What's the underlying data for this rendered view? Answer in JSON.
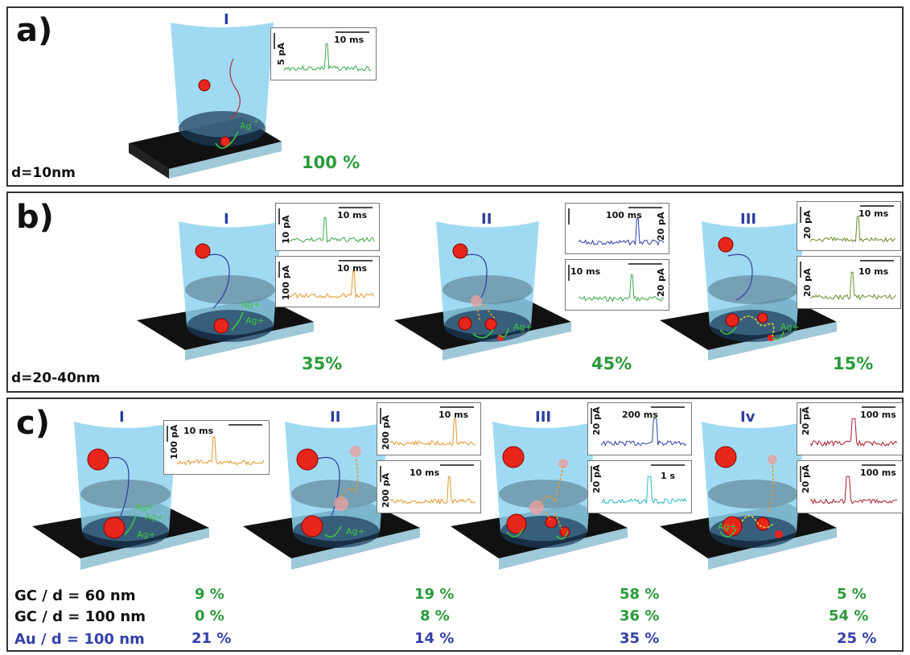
{
  "panels": {
    "a": {
      "letter": "a)",
      "dlabel": "d=10nm",
      "pct": [
        "100 %"
      ],
      "roman": [
        "I"
      ]
    },
    "b": {
      "letter": "b)",
      "dlabel": "d=20-40nm",
      "pct": [
        "35%",
        "45%",
        "15%"
      ],
      "roman": [
        "I",
        "II",
        "III"
      ]
    },
    "c": {
      "letter": "c)",
      "roman": [
        "I",
        "II",
        "III",
        "Iv"
      ]
    }
  },
  "traces": {
    "a1": {
      "time": "10 ms",
      "amp": "5 pA",
      "color": "#3aa84a"
    },
    "b1": {
      "time": "10 ms",
      "amp": "10 pA",
      "color": "#3aa84a"
    },
    "b2": {
      "time": "10 ms",
      "amp": "100 pA",
      "color": "#e0962a"
    },
    "b3": {
      "time": "100 ms",
      "amp": "20 pA",
      "color": "#2c3ea8"
    },
    "b4": {
      "time": "10 ms",
      "amp": "20 pA",
      "color": "#3aa84a"
    },
    "b5": {
      "time": "10 ms",
      "amp": "20 pA",
      "color": "#6b8a2a"
    },
    "b6": {
      "time": "10 ms",
      "amp": "20 pA",
      "color": "#6b8a2a"
    },
    "c1": {
      "time": "10 ms",
      "amp": "100 pA",
      "color": "#e0962a"
    },
    "c2": {
      "time": "10 ms",
      "amp": "200 pA",
      "color": "#e0962a"
    },
    "c3": {
      "time": "10 ms",
      "amp": "200 pA",
      "color": "#e0962a"
    },
    "c4": {
      "time": "200 ms",
      "amp": "20 pA",
      "color": "#2c3ea8"
    },
    "c5": {
      "time": "1 s",
      "amp": "20 pA",
      "color": "#2ab8c8"
    },
    "c6": {
      "time": "100 ms",
      "amp": "20 pA",
      "color": "#a81c2a"
    },
    "c7": {
      "time": "100 ms",
      "amp": "20 pA",
      "color": "#a81c2a"
    }
  },
  "ion_label": "Ag+",
  "table": {
    "rows": [
      {
        "label": "GC / d = 60 nm",
        "color": "#111111",
        "values": [
          "9 %",
          "19 %",
          "58 %",
          "5 %"
        ]
      },
      {
        "label": "GC / d = 100 nm",
        "color": "#111111",
        "values": [
          "0 %",
          "8 %",
          "36 %",
          "54 %"
        ]
      },
      {
        "label": "Au / d = 100 nm",
        "color": "#3340a8",
        "values": [
          "21 %",
          "14 %",
          "35 %",
          "25 %"
        ]
      }
    ],
    "value_colors": [
      "#2a9a3a",
      "#2a9a3a",
      "#3340a8"
    ]
  },
  "colors": {
    "tube": "#8fd3f0",
    "particle": "#e8261c",
    "platform": "#111111",
    "ion": "#3cc83c"
  }
}
